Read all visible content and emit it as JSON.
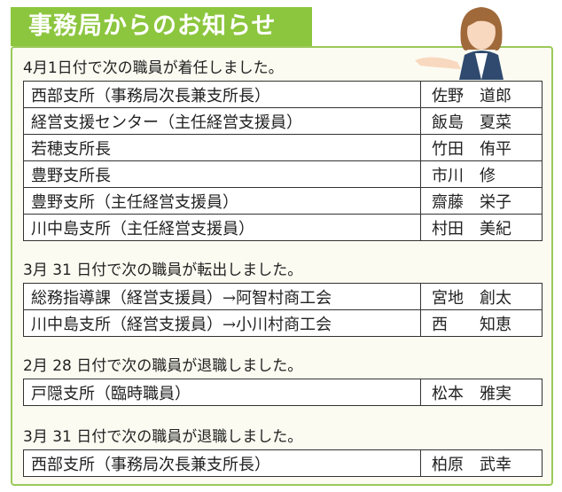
{
  "header": {
    "title": "事務局からのお知らせ"
  },
  "sections": [
    {
      "heading": "4月1日付で次の職員が着任しました。",
      "rows": [
        [
          "西部支所（事務局次長兼支所長）",
          "佐野　道郎"
        ],
        [
          "経営支援センター（主任経営支援員）",
          "飯島　夏菜"
        ],
        [
          "若穂支所長",
          "竹田　侑平"
        ],
        [
          "豊野支所長",
          "市川　修"
        ],
        [
          "豊野支所（主任経営支援員）",
          "齋藤　栄子"
        ],
        [
          "川中島支所（主任経営支援員）",
          "村田　美紀"
        ]
      ]
    },
    {
      "heading": "3月 31 日付で次の職員が転出しました。",
      "rows": [
        [
          "総務指導課（経営支援員）→阿智村商工会",
          "宮地　創太"
        ],
        [
          "川中島支所（経営支援員）→小川村商工会",
          "西　　知恵"
        ]
      ]
    },
    {
      "heading": "2月 28 日付で次の職員が退職しました。",
      "rows": [
        [
          "戸隠支所（臨時職員）",
          "松本　雅実"
        ]
      ]
    },
    {
      "heading": "3月 31 日付で次の職員が退職しました。",
      "rows": [
        [
          "西部支所（事務局次長兼支所長）",
          "柏原　武幸"
        ]
      ]
    }
  ]
}
